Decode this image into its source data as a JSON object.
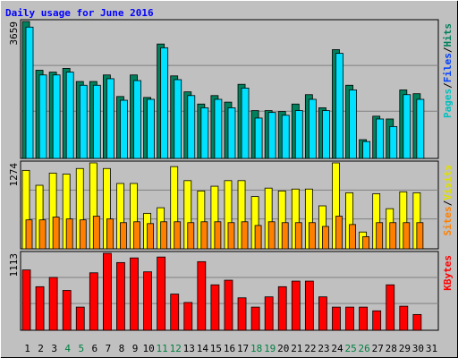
{
  "chart_data": [
    {
      "type": "bar",
      "title": "Daily usage for June 2016",
      "categories": [
        "1",
        "2",
        "3",
        "4",
        "5",
        "6",
        "7",
        "8",
        "9",
        "10",
        "11",
        "12",
        "13",
        "14",
        "15",
        "16",
        "17",
        "18",
        "19",
        "20",
        "21",
        "22",
        "23",
        "24",
        "25",
        "26",
        "27",
        "28",
        "29",
        "30",
        "31"
      ],
      "category_colors": [
        "#000000",
        "#000000",
        "#000000",
        "#008040",
        "#008040",
        "#000000",
        "#000000",
        "#000000",
        "#000000",
        "#000000",
        "#008040",
        "#008040",
        "#000000",
        "#000000",
        "#000000",
        "#000000",
        "#000000",
        "#008040",
        "#008040",
        "#000000",
        "#000000",
        "#000000",
        "#000000",
        "#000000",
        "#008040",
        "#008040",
        "#000000",
        "#000000",
        "#000000",
        "#000000",
        "#000000"
      ],
      "series": [
        {
          "color": "#00805c",
          "values": [
            3659,
            2356,
            2306,
            2406,
            2055,
            2055,
            2230,
            1654,
            2230,
            1629,
            3057,
            2205,
            1779,
            1453,
            1679,
            1504,
            1980,
            1278,
            1278,
            1253,
            1453,
            1704,
            1353,
            2907,
            1955,
            501,
            1128,
            1053,
            1830,
            1729,
            null
          ]
        },
        {
          "color": "#00e0ff",
          "values": [
            3509,
            2230,
            2230,
            2306,
            1955,
            1955,
            2130,
            1554,
            2080,
            1579,
            2957,
            2105,
            1679,
            1353,
            1579,
            1353,
            1880,
            1078,
            1228,
            1153,
            1278,
            1579,
            1278,
            2807,
            1830,
            451,
            1053,
            852,
            1704,
            1579,
            null
          ]
        }
      ],
      "legend": [
        {
          "text": "Pages",
          "color": "#00c0c0"
        },
        {
          "text": "/",
          "color": "#000000"
        },
        {
          "text": "Files",
          "color": "#0040ff"
        },
        {
          "text": "/",
          "color": "#000000"
        },
        {
          "text": "Hits",
          "color": "#00805c"
        }
      ],
      "ylim": [
        0,
        3659
      ],
      "yticks": [
        3659
      ]
    },
    {
      "type": "bar",
      "series": [
        {
          "color": "#ffff00",
          "values": [
            1163,
            942,
            1122,
            1108,
            1191,
            1274,
            1191,
            969,
            969,
            526,
            609,
            1219,
            1011,
            858,
            928,
            1011,
            1011,
            775,
            900,
            858,
            886,
            886,
            637,
            1274,
            831,
            249,
            817,
            595,
            845,
            831,
            null
          ]
        },
        {
          "color": "#ff8000",
          "values": [
            429,
            429,
            471,
            443,
            429,
            484,
            443,
            388,
            401,
            374,
            401,
            401,
            388,
            401,
            401,
            388,
            401,
            346,
            401,
            388,
            388,
            388,
            332,
            484,
            360,
            180,
            388,
            388,
            388,
            388,
            null
          ]
        }
      ],
      "legend": [
        {
          "text": "Sites",
          "color": "#ff8000"
        },
        {
          "text": "/",
          "color": "#000000"
        },
        {
          "text": "Visits",
          "color": "#e0e000"
        }
      ],
      "ylim": [
        0,
        1274
      ],
      "yticks": [
        1274
      ]
    },
    {
      "type": "bar",
      "series": [
        {
          "color": "#ff0000",
          "values": [
            872,
            630,
            764,
            576,
            335,
            831,
            1113,
            979,
            1046,
            845,
            1059,
            523,
            402,
            992,
            657,
            724,
            469,
            335,
            483,
            630,
            711,
            711,
            483,
            335,
            335,
            335,
            281,
            657,
            348,
            228,
            null
          ]
        }
      ],
      "legend": [
        {
          "text": "KBytes",
          "color": "#ff0000"
        }
      ],
      "ylim": [
        0,
        1113
      ],
      "yticks": [
        1113
      ]
    }
  ]
}
